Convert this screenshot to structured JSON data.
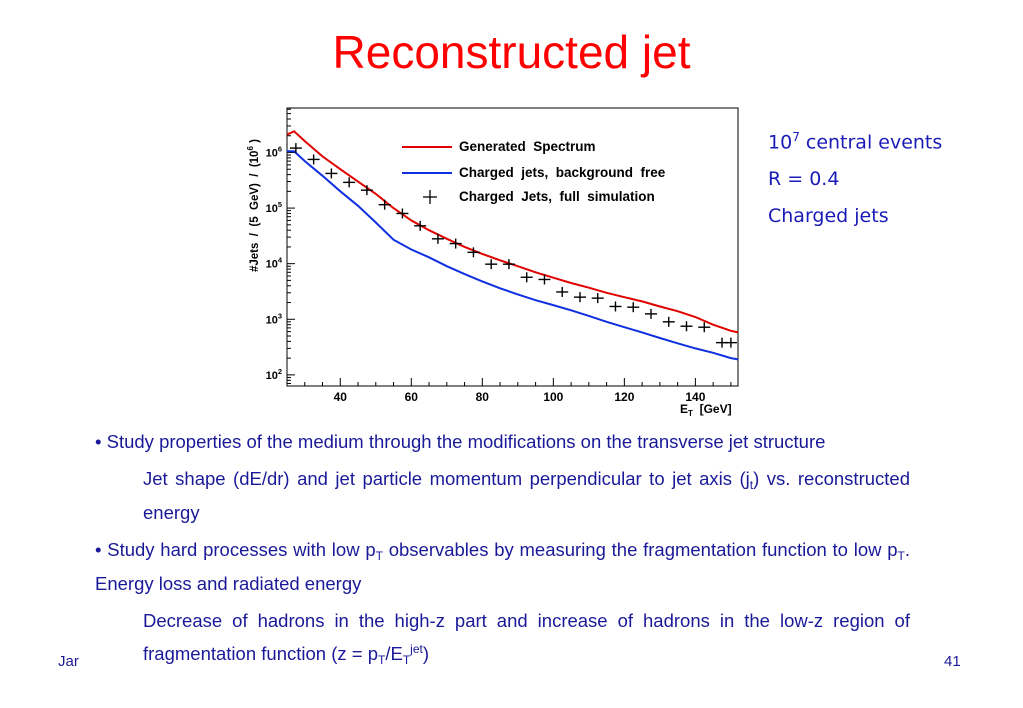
{
  "slide": {
    "title": "Reconstructed jet",
    "footer_left": "Jar",
    "page_number": "41"
  },
  "notes": {
    "line1_base": "10",
    "line1_exp": "7",
    "line1_rest": " central events",
    "line2": "R = 0.4",
    "line3": "Charged jets"
  },
  "bullets": {
    "b1_bullet": "•",
    "b1_text": " Study properties of the medium through the modifications on the  transverse jet structure",
    "b1_sub_pre": "Jet shape (dE/dr) and jet particle momentum perpendicular to jet axis (j",
    "b1_sub_subscript": "t",
    "b1_sub_post": ") vs. reconstructed energy",
    "b2_bullet": "•",
    "b2_a": " Study hard processes with low p",
    "b2_sub1": "T",
    "b2_b": " observables by measuring the fragmentation function to low p",
    "b2_sub2": "T",
    "b2_c": ". Energy loss and radiated energy",
    "b2_sub_a": "Decrease of hadrons in the high-z part and increase of hadrons in the low-z region of fragmentation function (z = p",
    "b2_sub_s1": "T",
    "b2_sub_b": "/E",
    "b2_sub_s2": "T",
    "b2_sub_sup": "jet",
    "b2_sub_c": ")"
  },
  "chart_data": {
    "type": "line",
    "ylabel": "#Jets  /  (5  GeV)  /  (10",
    "ylabel_exp": "6",
    "ylabel_end": " )",
    "xlabel_main": "E",
    "xlabel_sub": "T",
    "xlabel_unit": "  [GeV]",
    "xlim": [
      25,
      152
    ],
    "ylim_log10": [
      1.8,
      6.8
    ],
    "log_y": true,
    "x_ticks": [
      40,
      60,
      80,
      100,
      120,
      140
    ],
    "y_ticks": [
      {
        "base": "10",
        "exp": "2",
        "value": 100
      },
      {
        "base": "10",
        "exp": "3",
        "value": 1000
      },
      {
        "base": "10",
        "exp": "4",
        "value": 10000
      },
      {
        "base": "10",
        "exp": "5",
        "value": 100000
      },
      {
        "base": "10",
        "exp": "6",
        "value": 1000000
      }
    ],
    "colors": {
      "generated": "#e00000",
      "background_free": "#1030e0",
      "full_sim": "#000000"
    },
    "series": [
      {
        "name": "Generated  Spectrum",
        "style": "line",
        "x": [
          25,
          27,
          30,
          35,
          40,
          45,
          50,
          55,
          60,
          65,
          70,
          75,
          80,
          85,
          90,
          95,
          100,
          105,
          110,
          115,
          120,
          125,
          130,
          135,
          140,
          145,
          150,
          152
        ],
        "y": [
          2100000,
          2400000,
          1600000,
          850000,
          500000,
          300000,
          180000,
          100000,
          60000,
          40000,
          28000,
          20000,
          15000,
          11500,
          9000,
          7000,
          5600,
          4500,
          3700,
          3000,
          2500,
          2100,
          1700,
          1400,
          1100,
          800,
          620,
          580
        ]
      },
      {
        "name": "Charged  jets,  background  free",
        "style": "line",
        "x": [
          25,
          27,
          30,
          35,
          40,
          45,
          50,
          55,
          60,
          65,
          70,
          75,
          80,
          85,
          90,
          95,
          100,
          105,
          110,
          115,
          120,
          125,
          130,
          135,
          140,
          145,
          150,
          152
        ],
        "y": [
          1050000,
          1050000,
          700000,
          380000,
          200000,
          110000,
          55000,
          27000,
          18000,
          13000,
          9000,
          6500,
          4800,
          3600,
          2800,
          2200,
          1800,
          1450,
          1150,
          900,
          720,
          580,
          460,
          370,
          300,
          250,
          200,
          190
        ]
      },
      {
        "name": "Charged  Jets,  full  simulation",
        "style": "markers",
        "x": [
          27.5,
          32.5,
          37.5,
          42.5,
          47.5,
          52.5,
          57.5,
          62.5,
          67.5,
          72.5,
          77.5,
          82.5,
          87.5,
          92.5,
          97.5,
          102.5,
          107.5,
          112.5,
          117.5,
          122.5,
          127.5,
          132.5,
          137.5,
          142.5,
          147.5,
          150
        ],
        "y": [
          1200000,
          750000,
          420000,
          290000,
          210000,
          115000,
          80000,
          48000,
          28000,
          23000,
          16000,
          9800,
          9800,
          5700,
          5200,
          3100,
          2500,
          2400,
          1700,
          1650,
          1250,
          900,
          750,
          720,
          380,
          380
        ]
      }
    ]
  }
}
